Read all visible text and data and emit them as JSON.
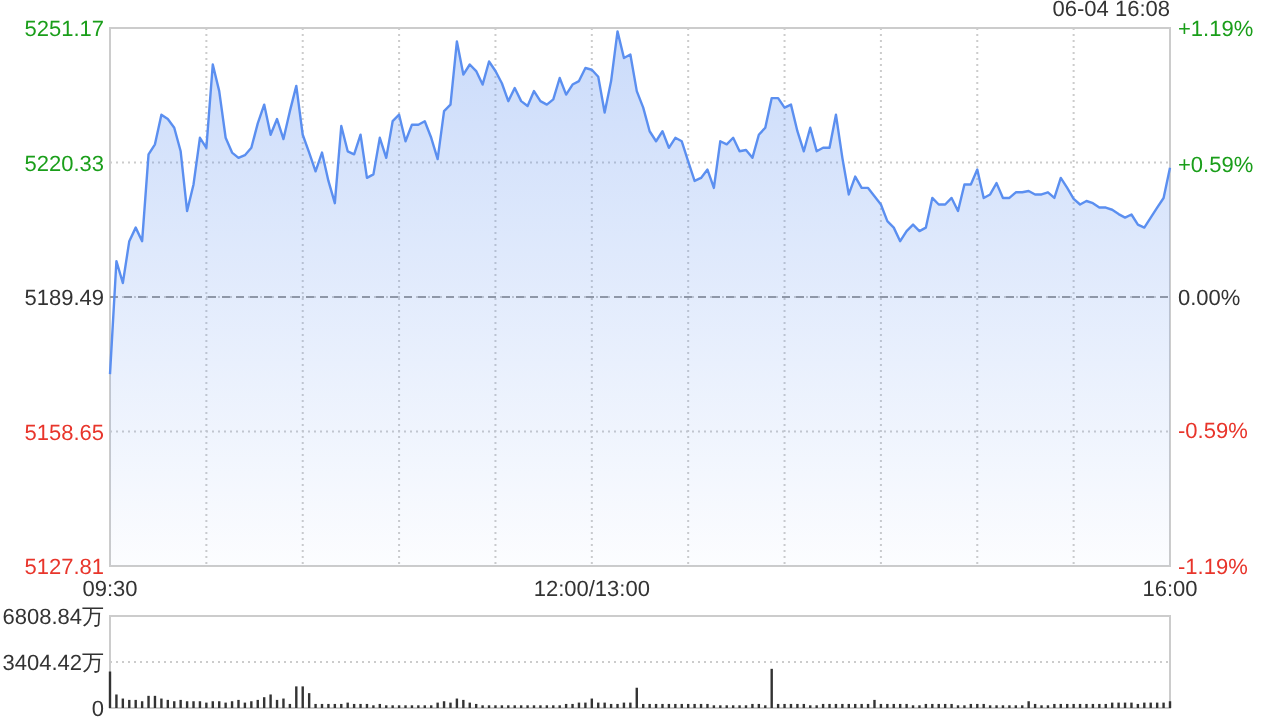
{
  "chart_data": [
    {
      "type": "area",
      "color": "#5b8ff0",
      "categories": [
        "09:30",
        null,
        null,
        null,
        null,
        null,
        null,
        null,
        null,
        null,
        null,
        null,
        null,
        null,
        null,
        null,
        null,
        null,
        null,
        null,
        null,
        null,
        null,
        null,
        null,
        null,
        null,
        null,
        null,
        null,
        null,
        null,
        null,
        null,
        null,
        null,
        null,
        null,
        null,
        null,
        null,
        null,
        null,
        null,
        null,
        null,
        null,
        null,
        null,
        null,
        null,
        null,
        null,
        null,
        null,
        null,
        null,
        null,
        null,
        null,
        null,
        null,
        null,
        null,
        null,
        null,
        null,
        null,
        null,
        null,
        null,
        null,
        null,
        null,
        null,
        "12:00/13:00",
        null,
        null,
        null,
        null,
        null,
        null,
        null,
        null,
        null,
        null,
        null,
        null,
        null,
        null,
        null,
        null,
        null,
        null,
        null,
        null,
        null,
        null,
        null,
        null,
        null,
        null,
        null,
        null,
        null,
        null,
        null,
        null,
        null,
        null,
        null,
        null,
        null,
        null,
        null,
        null,
        null,
        null,
        null,
        null,
        null,
        null,
        null,
        null,
        null,
        null,
        null,
        null,
        null,
        null,
        null,
        null,
        null,
        null,
        null,
        null,
        null,
        null,
        null,
        null,
        null,
        null,
        null,
        null,
        null,
        null,
        null,
        null,
        null,
        null,
        null,
        null,
        null,
        null,
        null,
        null,
        null,
        null,
        null,
        null,
        null,
        null,
        null,
        null,
        null,
        "16:00"
      ],
      "values": [
        5171.8,
        5197.7,
        5192.7,
        5202.3,
        5205.4,
        5202.3,
        5222.2,
        5224.5,
        5231.3,
        5230.3,
        5228.3,
        5222.9,
        5209.2,
        5215.3,
        5226.0,
        5223.7,
        5242.8,
        5236.7,
        5226.0,
        5222.6,
        5221.4,
        5222.0,
        5223.7,
        5229.3,
        5233.6,
        5226.7,
        5230.3,
        5225.7,
        5232.1,
        5237.9,
        5226.7,
        5222.6,
        5218.3,
        5222.6,
        5216.1,
        5211.0,
        5228.7,
        5222.9,
        5222.2,
        5226.7,
        5216.8,
        5217.6,
        5226.0,
        5221.4,
        5229.8,
        5231.3,
        5225.2,
        5229.0,
        5229.0,
        5229.8,
        5226.0,
        5221.1,
        5232.1,
        5233.6,
        5248.1,
        5240.5,
        5242.8,
        5241.3,
        5238.2,
        5243.5,
        5241.3,
        5238.5,
        5234.4,
        5237.4,
        5234.4,
        5233.3,
        5236.7,
        5234.4,
        5233.6,
        5234.8,
        5239.7,
        5235.9,
        5238.2,
        5239.0,
        5242.0,
        5241.6,
        5240.0,
        5231.8,
        5239.0,
        5250.4,
        5244.3,
        5245.1,
        5236.7,
        5232.9,
        5227.5,
        5225.2,
        5227.5,
        5223.7,
        5226.0,
        5225.2,
        5220.6,
        5216.1,
        5216.8,
        5218.7,
        5214.5,
        5225.2,
        5224.5,
        5226.0,
        5222.9,
        5223.2,
        5221.4,
        5226.7,
        5228.3,
        5235.1,
        5235.1,
        5232.9,
        5233.6,
        5227.5,
        5222.9,
        5228.3,
        5222.9,
        5223.7,
        5223.7,
        5231.3,
        5221.4,
        5213.0,
        5217.1,
        5214.5,
        5214.5,
        5212.6,
        5210.7,
        5206.9,
        5205.4,
        5202.3,
        5204.6,
        5206.1,
        5204.6,
        5205.4,
        5212.2,
        5210.7,
        5210.7,
        5212.2,
        5209.2,
        5215.3,
        5215.3,
        5218.7,
        5212.2,
        5213.0,
        5215.6,
        5212.2,
        5212.2,
        5213.5,
        5213.5,
        5213.8,
        5213.0,
        5213.0,
        5213.5,
        5212.2,
        5216.8,
        5214.5,
        5212.0,
        5210.7,
        5211.5,
        5211.0,
        5210.0,
        5210.0,
        5209.5,
        5208.5,
        5207.7,
        5208.4,
        5206.1,
        5205.4,
        5207.7,
        5210.0,
        5212.2,
        5219.1
      ],
      "ylim": [
        5127.81,
        5251.17
      ],
      "yticks": [
        5127.81,
        5158.65,
        5189.49,
        5220.33,
        5251.17
      ],
      "y2lim": [
        -1.19,
        1.19
      ],
      "y2ticks": [
        {
          "value": -1.19,
          "label": "-1.19%"
        },
        {
          "value": -0.59,
          "label": "-0.59%"
        },
        {
          "value": 0,
          "label": "0.00%"
        },
        {
          "value": 0.59,
          "label": "+0.59%"
        },
        {
          "value": 1.19,
          "label": "+1.19%"
        }
      ],
      "ref_lines": [
        {
          "axis": "y",
          "value": 5189.49,
          "color": "#999999",
          "line_style": "dashed"
        }
      ],
      "grid": true,
      "annotations": [
        "06-04 16:08"
      ]
    },
    {
      "type": "bar",
      "color": "#333333",
      "categories": [
        null,
        null,
        null,
        null,
        null,
        null,
        null,
        null,
        null,
        null,
        null,
        null,
        null,
        null,
        null,
        null,
        null,
        null,
        null,
        null,
        null,
        null,
        null,
        null,
        null,
        null,
        null,
        null,
        null,
        null,
        null,
        null,
        null,
        null,
        null,
        null,
        null,
        null,
        null,
        null,
        null,
        null,
        null,
        null,
        null,
        null,
        null,
        null,
        null,
        null,
        null,
        null,
        null,
        null,
        null,
        null,
        null,
        null,
        null,
        null,
        null,
        null,
        null,
        null,
        null,
        null,
        null,
        null,
        null,
        null,
        null,
        null,
        null,
        null,
        null,
        null,
        null,
        null,
        null,
        null,
        null,
        null,
        null,
        null,
        null,
        null,
        null,
        null,
        null,
        null,
        null,
        null,
        null,
        null,
        null,
        null,
        null,
        null,
        null,
        null,
        null,
        null,
        null,
        null,
        null,
        null,
        null,
        null,
        null,
        null,
        null,
        null,
        null,
        null,
        null,
        null,
        null,
        null,
        null,
        null,
        null,
        null,
        null,
        null,
        null,
        null,
        null,
        null,
        null,
        null,
        null,
        null,
        null,
        null,
        null,
        null,
        null,
        null,
        null,
        null,
        null,
        null,
        null,
        null,
        null,
        null,
        null,
        null,
        null,
        null,
        null,
        null,
        null,
        null,
        null,
        null,
        null,
        null,
        null,
        null,
        null,
        null,
        null,
        null,
        null,
        null
      ],
      "values": [
        2700,
        1000,
        700,
        600,
        600,
        500,
        900,
        900,
        700,
        600,
        500,
        600,
        500,
        500,
        500,
        400,
        500,
        500,
        400,
        500,
        600,
        400,
        500,
        600,
        800,
        1000,
        600,
        700,
        300,
        1600,
        1600,
        1100,
        300,
        300,
        300,
        300,
        300,
        400,
        300,
        300,
        300,
        200,
        300,
        200,
        200,
        200,
        200,
        200,
        200,
        200,
        200,
        400,
        500,
        400,
        700,
        600,
        400,
        300,
        200,
        200,
        200,
        200,
        200,
        200,
        200,
        200,
        200,
        200,
        200,
        200,
        200,
        300,
        300,
        400,
        400,
        700,
        400,
        400,
        300,
        300,
        400,
        400,
        1500,
        300,
        300,
        300,
        300,
        300,
        300,
        300,
        300,
        300,
        300,
        300,
        200,
        200,
        200,
        200,
        200,
        200,
        300,
        300,
        200,
        2900,
        300,
        300,
        300,
        300,
        300,
        200,
        200,
        300,
        300,
        300,
        300,
        300,
        300,
        300,
        300,
        600,
        300,
        300,
        300,
        300,
        300,
        200,
        200,
        300,
        300,
        300,
        300,
        300,
        200,
        200,
        300,
        300,
        300,
        200,
        200,
        200,
        200,
        200,
        200,
        500,
        300,
        200,
        200,
        300,
        300,
        300,
        300,
        300,
        300,
        300,
        300,
        300,
        400,
        400,
        400,
        400,
        300,
        400,
        400,
        400,
        400,
        500
      ],
      "ylim": [
        0,
        6808.84
      ],
      "yticks": [
        0,
        {
          "value": 3404.42,
          "label": "3404.42万"
        },
        {
          "value": 6808.84,
          "label": "6808.84万"
        }
      ],
      "tick_labels": "y",
      "grid": "y"
    }
  ]
}
